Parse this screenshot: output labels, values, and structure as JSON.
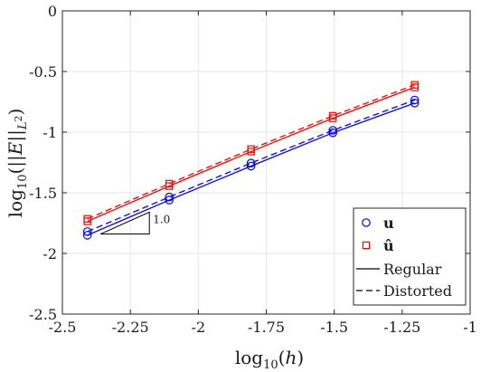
{
  "chart_data": {
    "type": "line",
    "xlabel": "log10(h)",
    "ylabel": "log10(||E||L²)",
    "xlim": [
      -2.5,
      -1
    ],
    "ylim": [
      -2.5,
      0
    ],
    "xticks": [
      -2.5,
      -2.25,
      -2,
      -1.75,
      -1.5,
      -1.25,
      -1
    ],
    "xtick_labels": [
      "-2.5",
      "-2.25",
      "-2",
      "-1.75",
      "-1.5",
      "-1.25",
      "-1"
    ],
    "yticks": [
      0,
      -0.5,
      -1,
      -1.5,
      -2,
      -2.5
    ],
    "ytick_labels": [
      "0",
      "-0.5",
      "-1",
      "-1.5",
      "-2",
      "-2.5"
    ],
    "grid": true,
    "legend_position": "bottom-right",
    "legend": [
      {
        "label": "u",
        "marker": "circle",
        "color": "#0000ff"
      },
      {
        "label": "û",
        "marker": "square",
        "color": "#ff0000"
      },
      {
        "label": "Regular",
        "linestyle": "solid",
        "color": "#000000"
      },
      {
        "label": "Distorted",
        "linestyle": "dashed",
        "color": "#000000"
      }
    ],
    "x": [
      -2.408,
      -2.107,
      -1.806,
      -1.505,
      -1.204
    ],
    "series": [
      {
        "field": "u",
        "mesh": "regular",
        "color": "#0000ff",
        "marker": "circle",
        "linestyle": "solid",
        "values": [
          -1.85,
          -1.56,
          -1.28,
          -1.005,
          -0.76
        ]
      },
      {
        "field": "u",
        "mesh": "distorted",
        "color": "#0000ff",
        "marker": "circle",
        "linestyle": "dashed",
        "values": [
          -1.82,
          -1.535,
          -1.255,
          -0.985,
          -0.735
        ]
      },
      {
        "field": "û",
        "mesh": "regular",
        "color": "#ff0000",
        "marker": "square",
        "linestyle": "solid",
        "values": [
          -1.735,
          -1.445,
          -1.16,
          -0.885,
          -0.63
        ]
      },
      {
        "field": "û",
        "mesh": "distorted",
        "color": "#ff0000",
        "marker": "square",
        "linestyle": "dashed",
        "values": [
          -1.715,
          -1.425,
          -1.14,
          -0.865,
          -0.61
        ]
      }
    ],
    "slope_annotation": {
      "label": "1.0",
      "slope": 1.0,
      "x_start": -2.36,
      "x_end": -2.18,
      "y_base": -1.84
    }
  }
}
